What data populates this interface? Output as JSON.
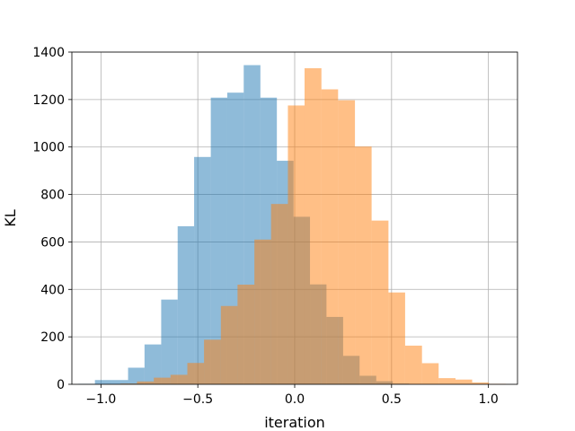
{
  "chart_data": {
    "type": "bar",
    "subtype": "overlapping-histogram",
    "title": "",
    "xlabel": "iteration",
    "ylabel": "KL",
    "xlim": [
      -1.15,
      1.15
    ],
    "ylim": [
      0,
      1400
    ],
    "x_ticks": [
      -1.0,
      -0.5,
      0.0,
      0.5,
      1.0
    ],
    "x_tick_labels": [
      "−1.0",
      "−0.5",
      "0.0",
      "0.5",
      "1.0"
    ],
    "y_ticks": [
      0,
      200,
      400,
      600,
      800,
      1000,
      1200,
      1400
    ],
    "y_tick_labels": [
      "0",
      "200",
      "400",
      "600",
      "800",
      "1000",
      "1200",
      "1400"
    ],
    "grid": true,
    "legend": "none",
    "series": [
      {
        "color": "#1f77b4",
        "alpha": 0.5,
        "bin_edges": [
          -1.116,
          -1.031,
          -0.946,
          -0.86,
          -0.775,
          -0.689,
          -0.604,
          -0.519,
          -0.433,
          -0.348,
          -0.263,
          -0.177,
          -0.092,
          -0.006,
          0.079,
          0.164,
          0.25,
          0.335,
          0.421,
          0.506,
          0.591
        ],
        "counts": [
          2,
          18,
          18,
          70,
          168,
          357,
          666,
          958,
          1208,
          1229,
          1345,
          1208,
          942,
          706,
          421,
          284,
          120,
          36,
          13,
          3
        ]
      },
      {
        "color": "#ff7f0e",
        "alpha": 0.5,
        "bin_edges": [
          -0.9,
          -0.814,
          -0.727,
          -0.641,
          -0.554,
          -0.468,
          -0.381,
          -0.295,
          -0.208,
          -0.122,
          -0.035,
          0.051,
          0.138,
          0.224,
          0.311,
          0.397,
          0.484,
          0.57,
          0.657,
          0.743,
          0.83,
          0.916,
          1.003,
          1.089
        ],
        "counts": [
          3,
          12,
          28,
          40,
          90,
          188,
          330,
          420,
          610,
          760,
          1175,
          1332,
          1243,
          1197,
          1002,
          690,
          387,
          163,
          89,
          26,
          20,
          8,
          2
        ]
      }
    ]
  }
}
